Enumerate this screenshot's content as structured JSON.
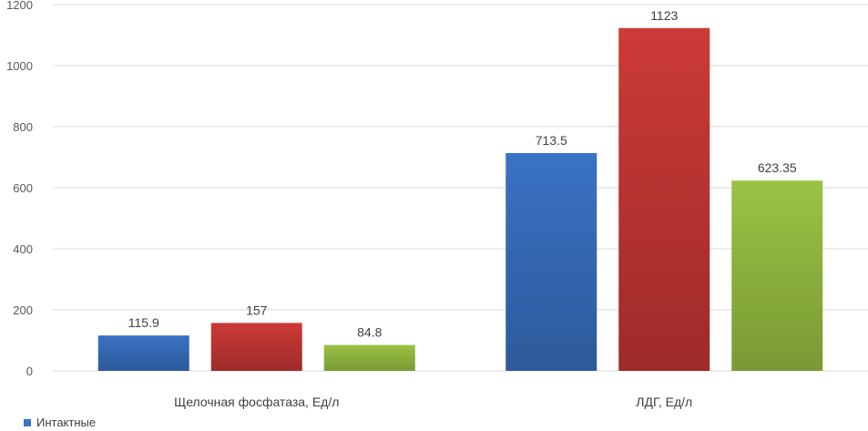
{
  "chart_data": {
    "type": "bar",
    "categories": [
      "Щелочная фосфатаза, Ед/л",
      "ЛДГ, Ед/л"
    ],
    "series": [
      {
        "name": "Интактные",
        "values": [
          115.9,
          713.5
        ],
        "labels": [
          "115.9",
          "713.5"
        ],
        "color": "#3a72c4",
        "color_dark": "#2d5a9a"
      },
      {
        "values": [
          157,
          1123
        ],
        "labels": [
          "157",
          "1123"
        ],
        "color": "#cc3a37",
        "color_dark": "#9e2b29"
      },
      {
        "values": [
          84.8,
          623.35
        ],
        "labels": [
          "84.8",
          "623.35"
        ],
        "color": "#9bc244",
        "color_dark": "#799a34"
      }
    ],
    "yticks": [
      "0",
      "200",
      "400",
      "600",
      "800",
      "1000",
      "1200"
    ],
    "ylim": [
      0,
      1200
    ],
    "grid": true,
    "legend": {
      "position": "bottom-left",
      "entries": [
        "Интактные"
      ]
    }
  }
}
